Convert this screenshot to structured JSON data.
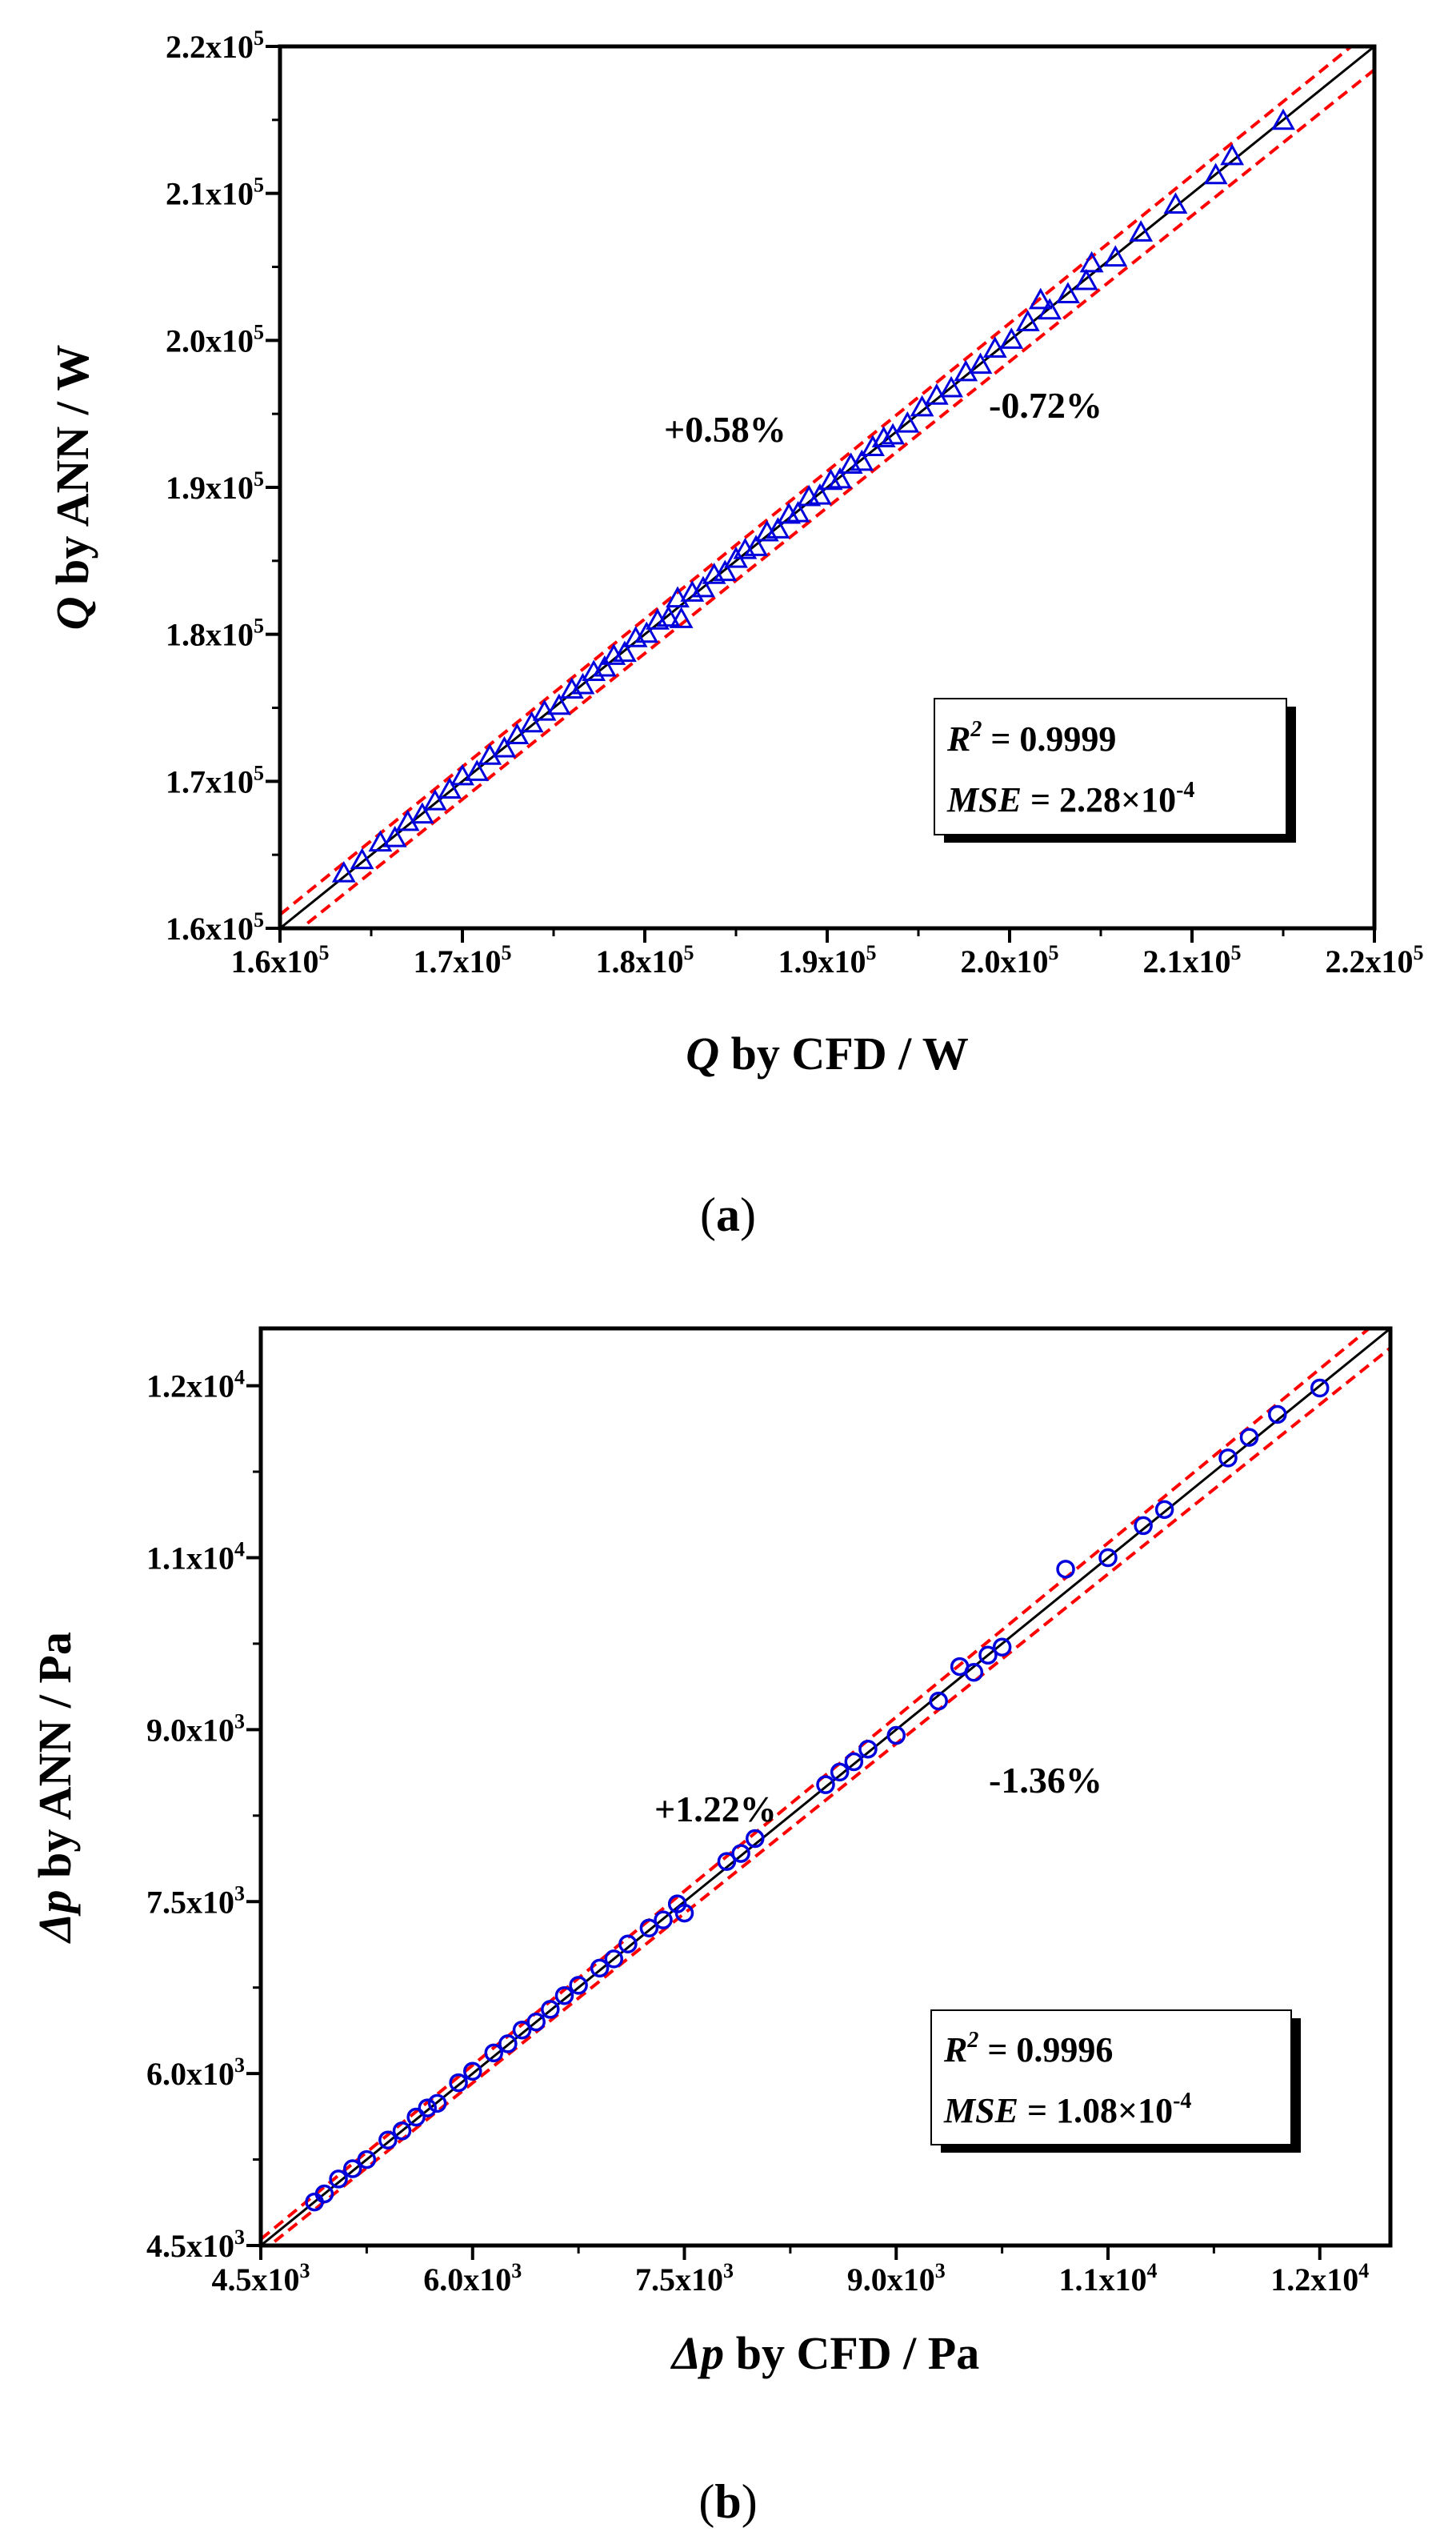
{
  "colors": {
    "marker": "#0000dd",
    "fit_line": "#000000",
    "band": "#ff0000",
    "frame": "#000000"
  },
  "chart_data": [
    {
      "id": "a",
      "type": "scatter",
      "panel_label": "(a)",
      "panel_letter": "a",
      "marker": "triangle",
      "xlabel": {
        "symbol": "Q",
        "text": " by CFD / W"
      },
      "ylabel": {
        "symbol": "Q",
        "text": " by ANN / W"
      },
      "xlim": [
        160000,
        220000
      ],
      "ylim": [
        160000,
        220000
      ],
      "ticks": [
        160000,
        170000,
        180000,
        190000,
        200000,
        210000,
        220000
      ],
      "tick_labels": [
        {
          "m": "1.6x10",
          "e": "5"
        },
        {
          "m": "1.7x10",
          "e": "5"
        },
        {
          "m": "1.8x10",
          "e": "5"
        },
        {
          "m": "1.9x10",
          "e": "5"
        },
        {
          "m": "2.0x10",
          "e": "5"
        },
        {
          "m": "2.1x10",
          "e": "5"
        },
        {
          "m": "2.2x10",
          "e": "5"
        }
      ],
      "bands": {
        "upper_pct": 0.58,
        "lower_pct": -0.72
      },
      "upper_label": "+0.58%",
      "lower_label": "-0.72%",
      "stats": {
        "r2_sym": "R",
        "r2_exp": "2",
        "r2_value": " = 0.9999",
        "mse_sym": "MSE",
        "mse_value": " = 2.28×10",
        "mse_exp": "-4"
      },
      "points": [
        [
          163500,
          163700
        ],
        [
          164500,
          164600
        ],
        [
          165500,
          165800
        ],
        [
          166300,
          166100
        ],
        [
          167000,
          167200
        ],
        [
          167800,
          167700
        ],
        [
          168500,
          168600
        ],
        [
          169300,
          169400
        ],
        [
          170000,
          170300
        ],
        [
          170800,
          170600
        ],
        [
          171500,
          171700
        ],
        [
          172300,
          172200
        ],
        [
          173000,
          173100
        ],
        [
          173800,
          173900
        ],
        [
          174500,
          174700
        ],
        [
          175300,
          175100
        ],
        [
          176000,
          176200
        ],
        [
          176600,
          176500
        ],
        [
          177200,
          177400
        ],
        [
          177800,
          177700
        ],
        [
          178300,
          178500
        ],
        [
          178900,
          178700
        ],
        [
          179500,
          179700
        ],
        [
          180100,
          180000
        ],
        [
          180700,
          180900
        ],
        [
          181300,
          181100
        ],
        [
          181800,
          182400
        ],
        [
          182000,
          181000
        ],
        [
          182600,
          182800
        ],
        [
          183200,
          183100
        ],
        [
          183800,
          184000
        ],
        [
          184400,
          184200
        ],
        [
          185000,
          185100
        ],
        [
          185500,
          185700
        ],
        [
          186100,
          185900
        ],
        [
          186700,
          186900
        ],
        [
          187300,
          187100
        ],
        [
          187900,
          188100
        ],
        [
          188400,
          188200
        ],
        [
          189000,
          189300
        ],
        [
          189600,
          189400
        ],
        [
          190200,
          190400
        ],
        [
          190700,
          190500
        ],
        [
          191300,
          191500
        ],
        [
          191900,
          191700
        ],
        [
          192500,
          192700
        ],
        [
          193100,
          193300
        ],
        [
          193600,
          193500
        ],
        [
          194400,
          194300
        ],
        [
          195200,
          195400
        ],
        [
          196000,
          196200
        ],
        [
          196800,
          196700
        ],
        [
          197600,
          197800
        ],
        [
          198400,
          198300
        ],
        [
          199200,
          199400
        ],
        [
          200100,
          200000
        ],
        [
          201000,
          201200
        ],
        [
          201700,
          202700
        ],
        [
          202200,
          202000
        ],
        [
          203200,
          203100
        ],
        [
          204200,
          204000
        ],
        [
          204500,
          205200
        ],
        [
          205800,
          205600
        ],
        [
          207200,
          207300
        ],
        [
          209100,
          209200
        ],
        [
          211300,
          211200
        ],
        [
          212200,
          212500
        ],
        [
          215000,
          214900
        ]
      ]
    },
    {
      "id": "b",
      "type": "scatter",
      "panel_label": "(b)",
      "panel_letter": "b",
      "marker": "circle",
      "xlabel": {
        "symbol": "Δp",
        "text": " by CFD / Pa"
      },
      "ylabel": {
        "symbol": "Δp",
        "text": " by ANN / Pa"
      },
      "xlim": [
        4500,
        12500
      ],
      "ylim": [
        4500,
        12500
      ],
      "ticks": [
        4500,
        6000,
        7500,
        9000,
        10500,
        12000
      ],
      "tick_labels": [
        {
          "m": "4.5x10",
          "e": "3"
        },
        {
          "m": "6.0x10",
          "e": "3"
        },
        {
          "m": "7.5x10",
          "e": "3"
        },
        {
          "m": "9.0x10",
          "e": "3"
        },
        {
          "m": "1.1x10",
          "e": "4"
        },
        {
          "m": "1.2x10",
          "e": "4"
        }
      ],
      "bands": {
        "upper_pct": 1.22,
        "lower_pct": -1.36
      },
      "upper_label": "+1.22%",
      "lower_label": "-1.36%",
      "stats": {
        "r2_sym": "R",
        "r2_exp": "2",
        "r2_value": " = 0.9996",
        "mse_sym": "MSE",
        "mse_value": " = 1.08×10",
        "mse_exp": "-4"
      },
      "points": [
        [
          4880,
          4880
        ],
        [
          4950,
          4950
        ],
        [
          5050,
          5080
        ],
        [
          5150,
          5170
        ],
        [
          5250,
          5250
        ],
        [
          5400,
          5420
        ],
        [
          5500,
          5500
        ],
        [
          5600,
          5620
        ],
        [
          5680,
          5700
        ],
        [
          5750,
          5740
        ],
        [
          5900,
          5920
        ],
        [
          6000,
          6020
        ],
        [
          6150,
          6180
        ],
        [
          6250,
          6260
        ],
        [
          6350,
          6380
        ],
        [
          6450,
          6450
        ],
        [
          6550,
          6560
        ],
        [
          6650,
          6680
        ],
        [
          6750,
          6770
        ],
        [
          6900,
          6920
        ],
        [
          7000,
          7000
        ],
        [
          7100,
          7130
        ],
        [
          7250,
          7270
        ],
        [
          7350,
          7340
        ],
        [
          7450,
          7480
        ],
        [
          7500,
          7400
        ],
        [
          7800,
          7850
        ],
        [
          7900,
          7920
        ],
        [
          8000,
          8050
        ],
        [
          8500,
          8520
        ],
        [
          8600,
          8630
        ],
        [
          8700,
          8720
        ],
        [
          8800,
          8830
        ],
        [
          9000,
          8950
        ],
        [
          9300,
          9250
        ],
        [
          9450,
          9550
        ],
        [
          9550,
          9500
        ],
        [
          9650,
          9650
        ],
        [
          9750,
          9720
        ],
        [
          10200,
          10400
        ],
        [
          10500,
          10500
        ],
        [
          10750,
          10780
        ],
        [
          10900,
          10920
        ],
        [
          11350,
          11370
        ],
        [
          11500,
          11550
        ],
        [
          11700,
          11750
        ],
        [
          12000,
          11980
        ]
      ]
    }
  ]
}
